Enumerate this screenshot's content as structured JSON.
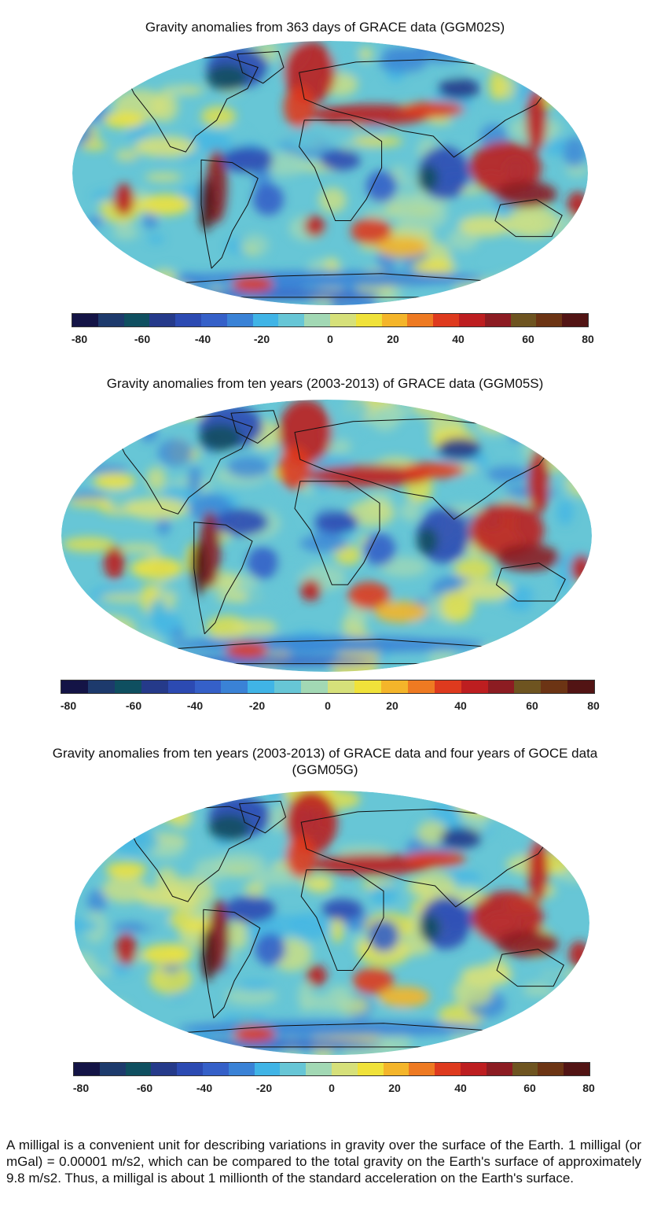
{
  "figure": {
    "colormap": [
      "#141446",
      "#1d3a6c",
      "#0f4f60",
      "#253a8a",
      "#2c4ab2",
      "#3560c8",
      "#3a82d6",
      "#40b4e6",
      "#67c6d6",
      "#a2d8b4",
      "#d6e07a",
      "#f0e23a",
      "#f4b52a",
      "#ee7a22",
      "#de3a1e",
      "#bd1e20",
      "#8c1c22",
      "#6e5420",
      "#6c3414",
      "#521414"
    ],
    "continent_color": "#101010",
    "panels": [
      {
        "title": "Gravity anomalies from 363 days of GRACE data (GGM02S)",
        "colorbar_ticks": [
          "-80",
          "-60",
          "-40",
          "-20",
          "0",
          "20",
          "40",
          "60",
          "80"
        ]
      },
      {
        "title": "Gravity anomalies from ten years (2003-2013) of GRACE data (GGM05S)",
        "colorbar_ticks": [
          "-80",
          "-60",
          "-40",
          "-20",
          "0",
          "20",
          "40",
          "60",
          "80"
        ]
      },
      {
        "title": "Gravity anomalies from ten years (2003-2013) of GRACE data and four years of GOCE data (GGM05G)",
        "colorbar_ticks": [
          "-80",
          "-60",
          "-40",
          "-20",
          "0",
          "20",
          "40",
          "60",
          "80"
        ]
      }
    ]
  },
  "footnote": "A milligal is a convenient unit for describing variations in gravity over the surface of the Earth. 1 milligal (or mGal) = 0.00001 m/s2, which can be compared to the total gravity on the Earth's surface of approximately 9.8 m/s2. Thus, a milligal is about 1 millionth of the standard acceleration on the Earth's surface."
}
